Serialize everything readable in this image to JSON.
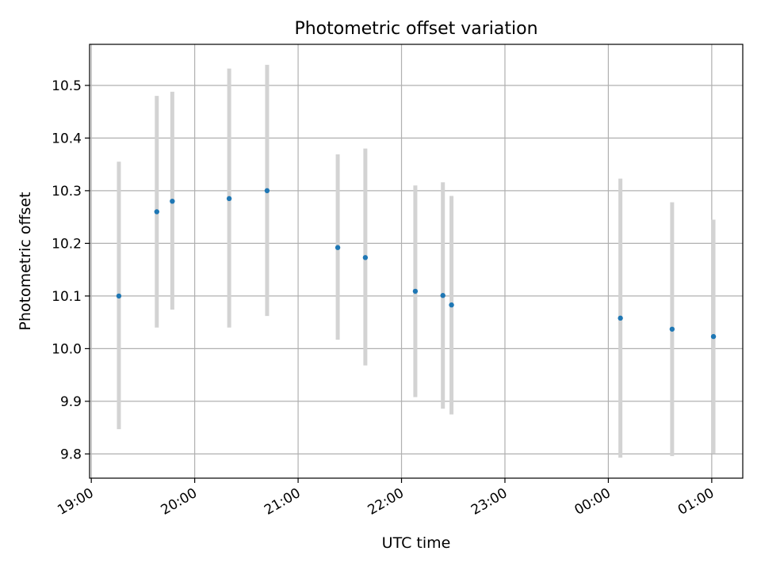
{
  "chart_data": {
    "type": "scatter",
    "title": "Photometric offset variation",
    "xlabel": "UTC time",
    "ylabel": "Photometric offset",
    "xlim": [
      "18:59",
      "01:18"
    ],
    "ylim": [
      9.754,
      10.578
    ],
    "grid": true,
    "x_ticks": [
      "19:00",
      "20:00",
      "21:00",
      "22:00",
      "23:00",
      "00:00",
      "01:00"
    ],
    "y_ticks": [
      "9.8",
      "9.9",
      "10.0",
      "10.1",
      "10.2",
      "10.3",
      "10.4",
      "10.5"
    ],
    "series": [
      {
        "point_color": "#1f77b4",
        "errorbar_color": "#d3d3d3",
        "points": [
          {
            "x": "19:16",
            "y": 10.1,
            "err_low": 9.847,
            "err_high": 10.355
          },
          {
            "x": "19:38",
            "y": 10.26,
            "err_low": 10.04,
            "err_high": 10.48
          },
          {
            "x": "19:47",
            "y": 10.28,
            "err_low": 10.074,
            "err_high": 10.488
          },
          {
            "x": "20:20",
            "y": 10.285,
            "err_low": 10.04,
            "err_high": 10.532
          },
          {
            "x": "20:42",
            "y": 10.3,
            "err_low": 10.062,
            "err_high": 10.539
          },
          {
            "x": "21:23",
            "y": 10.192,
            "err_low": 10.017,
            "err_high": 10.369
          },
          {
            "x": "21:39",
            "y": 10.173,
            "err_low": 9.968,
            "err_high": 10.38
          },
          {
            "x": "22:08",
            "y": 10.109,
            "err_low": 9.908,
            "err_high": 10.31
          },
          {
            "x": "22:24",
            "y": 10.101,
            "err_low": 9.886,
            "err_high": 10.316
          },
          {
            "x": "22:29",
            "y": 10.083,
            "err_low": 9.875,
            "err_high": 10.29
          },
          {
            "x": "00:07",
            "y": 10.058,
            "err_low": 9.793,
            "err_high": 10.323
          },
          {
            "x": "00:37",
            "y": 10.037,
            "err_low": 9.796,
            "err_high": 10.278
          },
          {
            "x": "01:01",
            "y": 10.023,
            "err_low": 9.801,
            "err_high": 10.245
          }
        ]
      }
    ]
  }
}
